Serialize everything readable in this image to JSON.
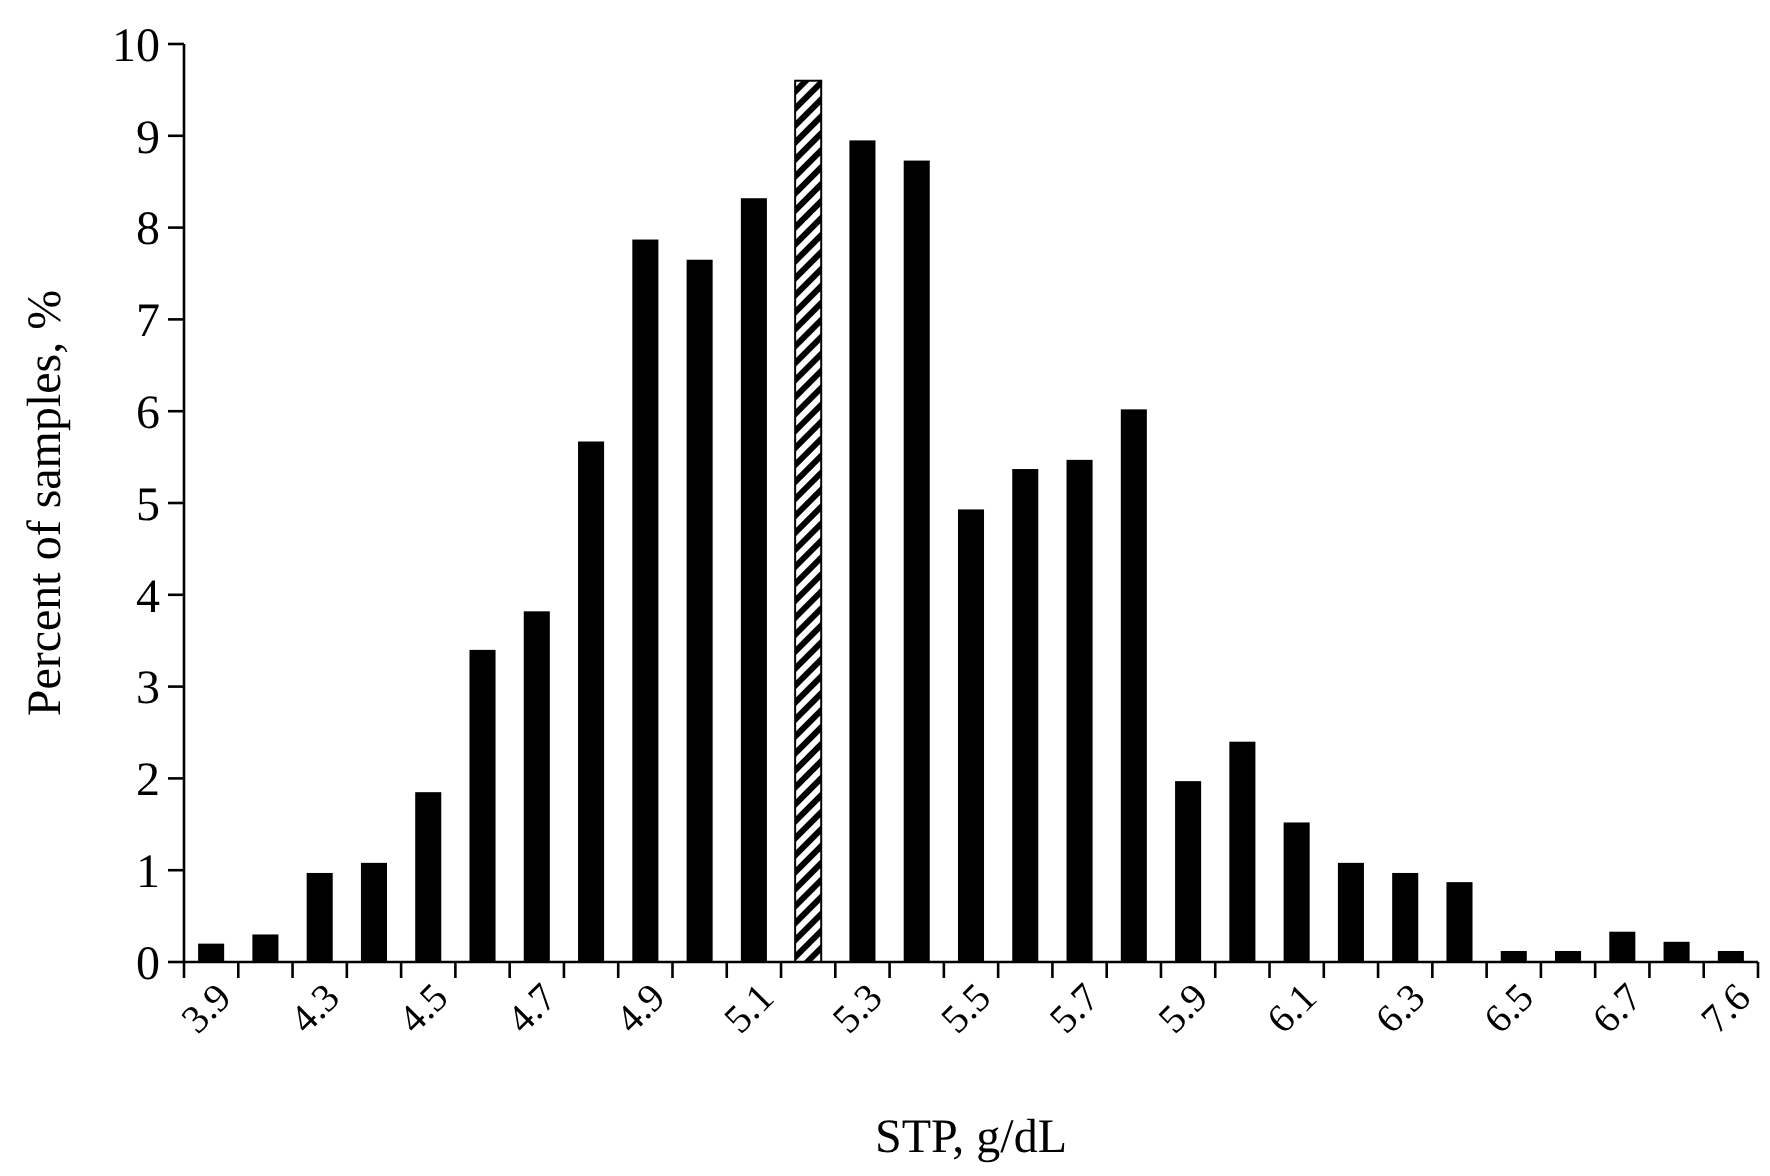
{
  "chart_data": {
    "type": "bar",
    "xlabel": "STP, g/dL",
    "ylabel": "Percent of samples, %",
    "categories": [
      "3.9",
      null,
      "4.3",
      null,
      "4.5",
      null,
      "4.7",
      null,
      "4.9",
      null,
      "5.1",
      null,
      "5.3",
      null,
      "5.5",
      null,
      "5.7",
      null,
      "5.9",
      null,
      "6.1",
      null,
      "6.3",
      null,
      "6.5",
      null,
      "6.7",
      null,
      "7.6"
    ],
    "series": [
      {
        "color": "#000000",
        "values": [
          0.2,
          0.3,
          0.97,
          1.08,
          1.85,
          3.4,
          3.82,
          5.67,
          7.87,
          7.65,
          8.32,
          null,
          8.95,
          8.73,
          4.93,
          5.37,
          5.47,
          6.02,
          1.97,
          2.4,
          1.52,
          1.08,
          0.97,
          0.87,
          0.12,
          0.12,
          0.33,
          0.22,
          0.12
        ]
      },
      {
        "color": "#000000",
        "values": [
          null,
          null,
          null,
          null,
          null,
          null,
          null,
          null,
          null,
          null,
          null,
          9.6,
          null,
          null,
          null,
          null,
          null,
          null,
          null,
          null,
          null,
          null,
          null,
          null,
          null,
          null,
          null,
          null,
          null
        ]
      }
    ],
    "ylim": [
      0,
      10
    ],
    "yticks": [
      0,
      1,
      2,
      3,
      4,
      5,
      6,
      7,
      8,
      9,
      10
    ],
    "grid": false
  }
}
